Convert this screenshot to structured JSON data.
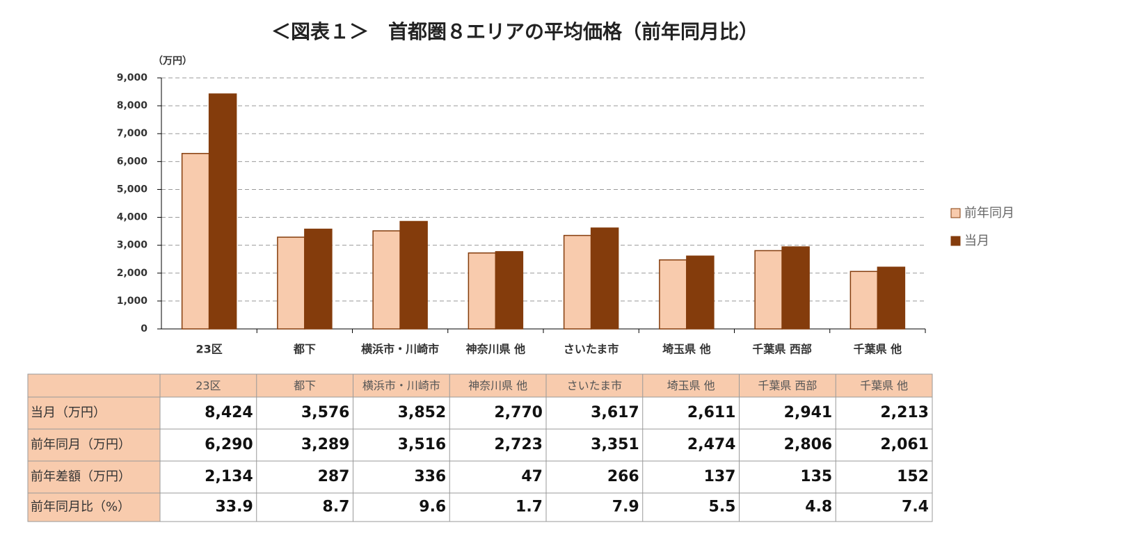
{
  "chart_data": {
    "type": "bar",
    "title": "＜図表１＞　首都圏８エリアの平均価格（前年同月比）",
    "y_unit_label": "（万円）",
    "categories": [
      "23区",
      "都下",
      "横浜市・川崎市",
      "神奈川県 他",
      "さいたま市",
      "埼玉県 他",
      "千葉県 西部",
      "千葉県 他"
    ],
    "series": [
      {
        "name": "前年同月",
        "color": "#f8cbad",
        "values": [
          6290,
          3289,
          3516,
          2723,
          3351,
          2474,
          2806,
          2061
        ]
      },
      {
        "name": "当月",
        "color": "#843c0c",
        "values": [
          8424,
          3576,
          3852,
          2770,
          3617,
          2611,
          2941,
          2213
        ]
      }
    ],
    "ylim": [
      0,
      9000
    ],
    "yticks": [
      0,
      {
        "value": 1000,
        "label": "1,000"
      },
      {
        "value": 2000,
        "label": "2,000"
      },
      {
        "value": 3000,
        "label": "3,000"
      },
      {
        "value": 4000,
        "label": "4,000"
      },
      {
        "value": 5000,
        "label": "5,000"
      },
      {
        "value": 6000,
        "label": "6,000"
      },
      {
        "value": 7000,
        "label": "7,000"
      },
      {
        "value": 8000,
        "label": "8,000"
      },
      {
        "value": 9000,
        "label": "9,000"
      }
    ],
    "grid": true,
    "legend": "right"
  },
  "table": {
    "columns": [
      "23区",
      "都下",
      "横浜市・川崎市",
      "神奈川県 他",
      "さいたま市",
      "埼玉県 他",
      "千葉県 西部",
      "千葉県 他"
    ],
    "rows": [
      {
        "label": "当月（万円）",
        "cells": [
          "8,424",
          "3,576",
          "3,852",
          "2,770",
          "3,617",
          "2,611",
          "2,941",
          "2,213"
        ]
      },
      {
        "label": "前年同月（万円）",
        "cells": [
          "6,290",
          "3,289",
          "3,516",
          "2,723",
          "3,351",
          "2,474",
          "2,806",
          "2,061"
        ]
      },
      {
        "label": "前年差額（万円）",
        "cells": [
          "2,134",
          "287",
          "336",
          "47",
          "266",
          "137",
          "135",
          "152"
        ]
      },
      {
        "label": "前年同月比（%）",
        "cells": [
          "33.9",
          "8.7",
          "9.6",
          "1.7",
          "7.9",
          "5.5",
          "4.8",
          "7.4"
        ]
      }
    ]
  }
}
